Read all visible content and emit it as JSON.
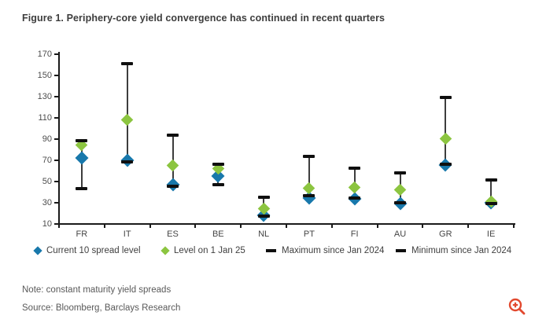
{
  "title": "Figure 1. Periphery-core yield convergence has continued in recent quarters",
  "note": "Note: constant maturity yield spreads",
  "source": "Source: Bloomberg, Barclays Research",
  "colors": {
    "current_blue": "#1878ab",
    "jan25_green": "#8cc540",
    "range_dash": "#0f0f0f",
    "whisker": "#3d3d3d",
    "axis": "#1a1a1a",
    "title_text": "#3d3d3d",
    "zoom_icon": "#e2492f"
  },
  "icons": {
    "bottom_right": "zoom-in-magnifier-plus"
  },
  "chart_data": {
    "type": "scatter",
    "subtype": "high-low range with point markers",
    "categories": [
      "FR",
      "IT",
      "ES",
      "BE",
      "NL",
      "PT",
      "FI",
      "AU",
      "GR",
      "IE"
    ],
    "series": [
      {
        "name": "Current 10 spread level",
        "marker": "diamond",
        "color": "#1878ab",
        "values": [
          72,
          70,
          47,
          55,
          18,
          34,
          33,
          29,
          65,
          30
        ]
      },
      {
        "name": "Level on 1 Jan 25",
        "marker": "diamond",
        "color": "#8cc540",
        "values": [
          84,
          108,
          65,
          62,
          24,
          43,
          44,
          42,
          90,
          31
        ]
      },
      {
        "name": "Maximum since Jan 2024",
        "marker": "dash",
        "color": "#0f0f0f",
        "values": [
          88,
          161,
          93,
          66,
          35,
          73,
          62,
          58,
          129,
          51
        ]
      },
      {
        "name": "Minimum since Jan 2024",
        "marker": "dash",
        "color": "#0f0f0f",
        "values": [
          43,
          68,
          45,
          47,
          17,
          36,
          34,
          30,
          66,
          29
        ]
      }
    ],
    "ylim": [
      10,
      170
    ],
    "yticks": [
      10,
      30,
      50,
      70,
      90,
      110,
      130,
      150,
      170
    ],
    "xlabel": "",
    "ylabel": "",
    "grid": false,
    "legend_position": "bottom"
  }
}
